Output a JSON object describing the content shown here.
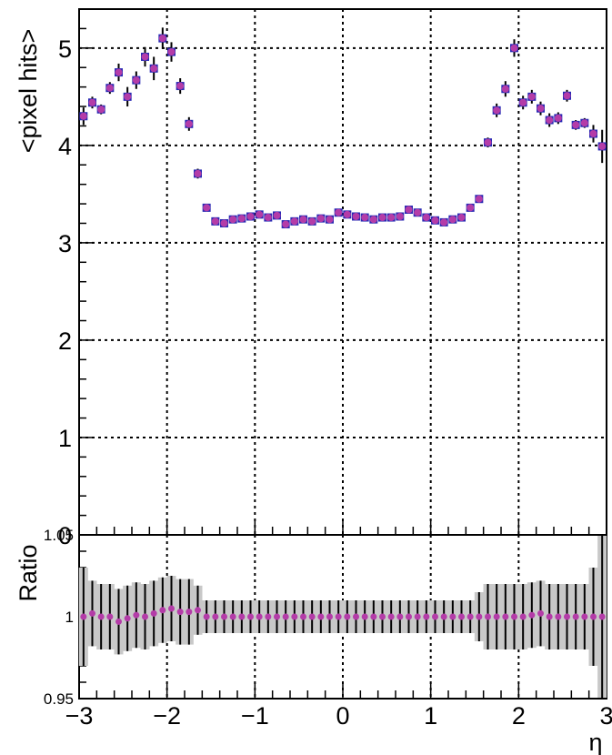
{
  "chart_data": [
    {
      "type": "scatter",
      "title": "",
      "xlabel": "η",
      "ylabel": "<pixel hits>",
      "xlim": [
        -3,
        3
      ],
      "ylim": [
        0,
        5.4
      ],
      "grid": true,
      "x_ticks": [
        "−3",
        "−2",
        "−1",
        "0",
        "1",
        "2",
        "3"
      ],
      "y_ticks": [
        "0",
        "1",
        "2",
        "3",
        "4",
        "5"
      ],
      "colors": {
        "data": "#b43ca8",
        "reference": "#2a2ab4",
        "error": "#000000"
      },
      "series": [
        {
          "x": [
            -2.95,
            -2.85,
            -2.75,
            -2.65,
            -2.55,
            -2.45,
            -2.35,
            -2.25,
            -2.15,
            -2.05,
            -1.95,
            -1.85,
            -1.75,
            -1.65,
            -1.55,
            -1.45,
            -1.35,
            -1.25,
            -1.15,
            -1.05,
            -0.95,
            -0.85,
            -0.75,
            -0.65,
            -0.55,
            -0.45,
            -0.35,
            -0.25,
            -0.15,
            -0.05,
            0.05,
            0.15,
            0.25,
            0.35,
            0.45,
            0.55,
            0.65,
            0.75,
            0.85,
            0.95,
            1.05,
            1.15,
            1.25,
            1.35,
            1.45,
            1.55,
            1.65,
            1.75,
            1.85,
            1.95,
            2.05,
            2.15,
            2.25,
            2.35,
            2.45,
            2.55,
            2.65,
            2.75,
            2.85,
            2.95
          ],
          "y": [
            4.3,
            4.44,
            4.37,
            4.59,
            4.75,
            4.5,
            4.67,
            4.91,
            4.79,
            5.1,
            4.96,
            4.61,
            4.22,
            3.71,
            3.36,
            3.22,
            3.2,
            3.24,
            3.25,
            3.27,
            3.29,
            3.26,
            3.28,
            3.19,
            3.22,
            3.24,
            3.22,
            3.25,
            3.24,
            3.31,
            3.29,
            3.27,
            3.26,
            3.24,
            3.26,
            3.26,
            3.27,
            3.34,
            3.31,
            3.26,
            3.23,
            3.21,
            3.24,
            3.26,
            3.36,
            3.45,
            4.03,
            4.36,
            4.58,
            5.0,
            4.44,
            4.5,
            4.38,
            4.26,
            4.28,
            4.51,
            4.21,
            4.23,
            4.12,
            3.99
          ],
          "err": [
            0.09,
            0.06,
            0.05,
            0.06,
            0.09,
            0.1,
            0.09,
            0.1,
            0.12,
            0.11,
            0.1,
            0.08,
            0.07,
            0.05,
            0.02,
            0.02,
            0.02,
            0.02,
            0.02,
            0.02,
            0.02,
            0.02,
            0.02,
            0.02,
            0.02,
            0.02,
            0.02,
            0.02,
            0.02,
            0.02,
            0.02,
            0.02,
            0.02,
            0.02,
            0.02,
            0.02,
            0.02,
            0.02,
            0.02,
            0.02,
            0.02,
            0.02,
            0.02,
            0.02,
            0.02,
            0.03,
            0.05,
            0.07,
            0.08,
            0.09,
            0.07,
            0.07,
            0.07,
            0.07,
            0.06,
            0.06,
            0.05,
            0.05,
            0.09,
            0.17
          ]
        }
      ]
    },
    {
      "type": "scatter",
      "title": "",
      "xlabel": "η",
      "ylabel": "Ratio",
      "xlim": [
        -3,
        3
      ],
      "ylim": [
        0.95,
        1.05
      ],
      "grid": true,
      "x_ticks": [
        "−3",
        "−2",
        "−1",
        "0",
        "1",
        "2",
        "3"
      ],
      "y_ticks": [
        "0.95",
        "1",
        "1.05"
      ],
      "series": [
        {
          "x": [
            -2.95,
            -2.85,
            -2.75,
            -2.65,
            -2.55,
            -2.45,
            -2.35,
            -2.25,
            -2.15,
            -2.05,
            -1.95,
            -1.85,
            -1.75,
            -1.65,
            -1.55,
            -1.45,
            -1.35,
            -1.25,
            -1.15,
            -1.05,
            -0.95,
            -0.85,
            -0.75,
            -0.65,
            -0.55,
            -0.45,
            -0.35,
            -0.25,
            -0.15,
            -0.05,
            0.05,
            0.15,
            0.25,
            0.35,
            0.45,
            0.55,
            0.65,
            0.75,
            0.85,
            0.95,
            1.05,
            1.15,
            1.25,
            1.35,
            1.45,
            1.55,
            1.65,
            1.75,
            1.85,
            1.95,
            2.05,
            2.15,
            2.25,
            2.35,
            2.45,
            2.55,
            2.65,
            2.75,
            2.85,
            2.95
          ],
          "y": [
            1.0,
            1.002,
            1.0,
            1.0,
            0.997,
            0.999,
            1.001,
            1.0,
            1.002,
            1.004,
            1.005,
            1.003,
            1.003,
            1.004,
            1.0,
            1.0,
            1.0,
            1.0,
            1.0,
            1.0,
            1.0,
            1.0,
            1.0,
            1.0,
            1.0,
            1.0,
            1.0,
            1.0,
            1.0,
            1.0,
            1.0,
            1.0,
            1.0,
            1.0,
            1.0,
            1.0,
            1.0,
            1.0,
            1.0,
            1.0,
            1.0,
            1.0,
            1.0,
            1.0,
            1.0,
            1.0,
            1.0,
            1.0,
            1.0,
            1.0,
            1.0,
            1.001,
            1.002,
            1.0,
            1.0,
            1.0,
            1.0,
            1.0,
            1.0,
            1.0
          ],
          "err": [
            0.03,
            0.02,
            0.02,
            0.02,
            0.02,
            0.02,
            0.02,
            0.02,
            0.02,
            0.02,
            0.02,
            0.02,
            0.02,
            0.015,
            0.01,
            0.01,
            0.01,
            0.01,
            0.01,
            0.01,
            0.01,
            0.01,
            0.01,
            0.01,
            0.01,
            0.01,
            0.01,
            0.01,
            0.01,
            0.01,
            0.01,
            0.01,
            0.01,
            0.01,
            0.01,
            0.01,
            0.01,
            0.01,
            0.01,
            0.01,
            0.01,
            0.01,
            0.01,
            0.01,
            0.01,
            0.015,
            0.02,
            0.02,
            0.02,
            0.02,
            0.02,
            0.02,
            0.02,
            0.02,
            0.02,
            0.02,
            0.02,
            0.02,
            0.03,
            0.05
          ]
        }
      ]
    }
  ]
}
